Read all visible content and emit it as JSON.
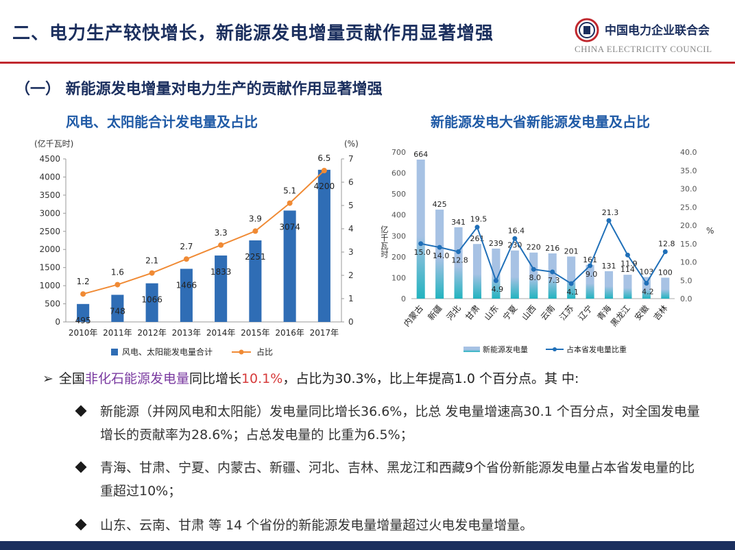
{
  "header": {
    "title": "二、电力生产较快增长，新能源发电增量贡献作用显著增强",
    "logo_cn": "中国电力企业联合会",
    "logo_en": "CHINA ELECTRICITY COUNCIL"
  },
  "section": {
    "heading": "（一）  新能源发电增量对电力生产的贡献作用显著增强"
  },
  "chart_data": [
    {
      "type": "bar",
      "title": "风电、太阳能合计发电量及占比",
      "ylabel": "(亿千瓦时)",
      "y2label": "(%)",
      "ylim": [
        0,
        4500
      ],
      "y2lim": [
        0,
        7
      ],
      "yticks": [
        "0",
        "500",
        "1000",
        "1500",
        "2000",
        "2500",
        "3000",
        "3500",
        "4000",
        "4500"
      ],
      "y2ticks": [
        "0",
        "1",
        "2",
        "3",
        "4",
        "5",
        "6",
        "7"
      ],
      "categories": [
        "2010年",
        "2011年",
        "2012年",
        "2013年",
        "2014年",
        "2015年",
        "2016年",
        "2017年"
      ],
      "series": [
        {
          "name": "风电、太阳能发电量合计",
          "kind": "bar",
          "values": [
            495,
            748,
            1066,
            1466,
            1833,
            2251,
            3074,
            4200
          ],
          "labels": [
            "495",
            "748",
            "1066",
            "1466",
            "1833",
            "2251",
            "3074",
            "4200"
          ]
        },
        {
          "name": "占比",
          "kind": "line",
          "axis": "right",
          "values": [
            1.2,
            1.6,
            2.1,
            2.7,
            3.3,
            3.9,
            5.1,
            6.5
          ],
          "labels": [
            "1.2",
            "1.6",
            "2.1",
            "2.7",
            "3.3",
            "3.9",
            "5.1",
            "6.5"
          ]
        }
      ],
      "colors": {
        "bar": "#2f6db5",
        "line": "#f08a34"
      },
      "grid": false,
      "legend": "bottom"
    },
    {
      "type": "bar",
      "title": "新能源发电大省新能源发电量及占比",
      "ylabel": "亿千瓦时",
      "y2label": "%",
      "ylim": [
        0,
        700
      ],
      "y2lim": [
        0,
        40
      ],
      "yticks": [
        "0",
        "100",
        "200",
        "300",
        "400",
        "500",
        "600",
        "700"
      ],
      "y2ticks": [
        "0.0",
        "5.0",
        "10.0",
        "15.0",
        "20.0",
        "25.0",
        "30.0",
        "35.0",
        "40.0"
      ],
      "categories": [
        "内蒙古",
        "新疆",
        "河北",
        "甘肃",
        "山东",
        "宁夏",
        "山西",
        "云南",
        "江苏",
        "辽宁",
        "青海",
        "黑龙江",
        "安徽",
        "吉林"
      ],
      "series": [
        {
          "name": "新能源发电量",
          "kind": "bar",
          "values": [
            664,
            425,
            341,
            261,
            239,
            230,
            220,
            216,
            201,
            161,
            131,
            114,
            103,
            100
          ],
          "labels": [
            "664",
            "425",
            "341",
            "261",
            "239",
            "230",
            "220",
            "216",
            "201",
            "161",
            "131",
            "114",
            "103",
            "100"
          ]
        },
        {
          "name": "占本省发电量比重",
          "kind": "line",
          "axis": "right",
          "values": [
            15.0,
            14.0,
            12.8,
            19.5,
            4.9,
            16.4,
            8.0,
            7.3,
            4.1,
            9.0,
            21.3,
            11.9,
            4.2,
            12.8
          ],
          "labels": [
            "15.0",
            "14.0",
            "12.8",
            "19.5",
            "4.9",
            "16.4",
            "8.0",
            "7.3",
            "4.1",
            "9.0",
            "21.3",
            "11.9",
            "4.2",
            "12.8"
          ]
        }
      ],
      "colors": {
        "bar": "#a7c2e4",
        "bar_base": "#22b3bf",
        "line": "#1f6fb8"
      },
      "grid": false,
      "legend": "bottom"
    }
  ],
  "bullets": {
    "main_prefix": "全国",
    "main_hl1": "非化石能源发电量",
    "main_mid": "同比增长",
    "main_hl2": "10.1%",
    "main_suffix": "，占比为30.3%，比上年提高1.0 个百分点。其 中:",
    "sub": [
      "新能源（并网风电和太阳能）发电量同比增长36.6%，比总 发电量增速高30.1 个百分点，对全国发电量增长的贡献率为28.6%；占总发电量的 比重为6.5%；",
      "青海、甘肃、宁夏、内蒙古、新疆、河北、吉林、黑龙江和西藏9个省份新能源发电量占本省发电量的比重超过10%；",
      "山东、云南、甘肃 等 14 个省份的新能源发电量增量超过火电发电量增量。"
    ]
  }
}
